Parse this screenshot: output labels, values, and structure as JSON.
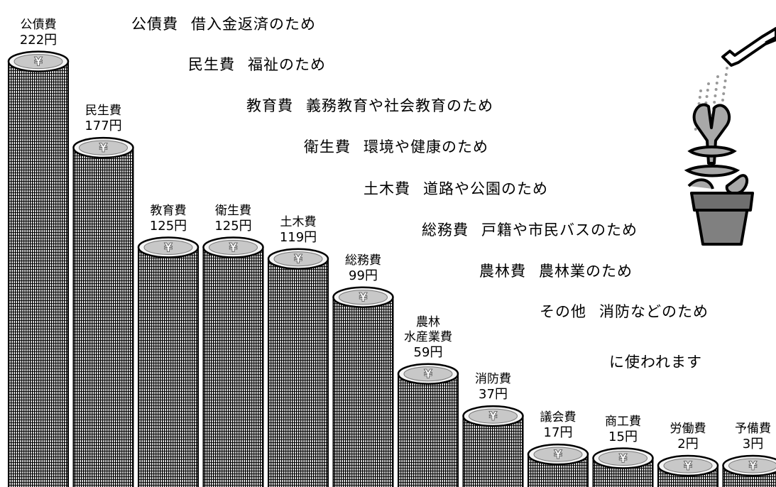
{
  "chart_data": {
    "type": "bar",
    "unit": "円",
    "categories": [
      {
        "name": "公債費",
        "value": 222,
        "value_label": "222円"
      },
      {
        "name": "民生費",
        "value": 177,
        "value_label": "177円"
      },
      {
        "name": "教育費",
        "value": 125,
        "value_label": "125円"
      },
      {
        "name": "衛生費",
        "value": 125,
        "value_label": "125円"
      },
      {
        "name": "土木費",
        "value": 119,
        "value_label": "119円"
      },
      {
        "name": "総務費",
        "value": 99,
        "value_label": "99円"
      },
      {
        "name": "農林\n水産業費",
        "value": 59,
        "value_label": "59円"
      },
      {
        "name": "消防費",
        "value": 37,
        "value_label": "37円"
      },
      {
        "name": "議会費",
        "value": 17,
        "value_label": "17円"
      },
      {
        "name": "商工費",
        "value": 15,
        "value_label": "15円"
      },
      {
        "name": "労働費",
        "value": 2,
        "value_label": "2円"
      },
      {
        "name": "予備費",
        "value": 3,
        "value_label": "3円"
      }
    ],
    "coin_symbol": "¥"
  },
  "descriptions": [
    {
      "item": "公債費",
      "purpose": "借入金返済のため"
    },
    {
      "item": "民生費",
      "purpose": "福祉のため"
    },
    {
      "item": "教育費",
      "purpose": "義務教育や社会教育のため"
    },
    {
      "item": "衛生費",
      "purpose": "環境や健康のため"
    },
    {
      "item": "土木費",
      "purpose": "道路や公園のため"
    },
    {
      "item": "総務費",
      "purpose": "戸籍や市民バスのため"
    },
    {
      "item": "農林費",
      "purpose": "農林業のため"
    },
    {
      "item": "その他",
      "purpose": "消防などのため"
    }
  ],
  "closing": "に使われます",
  "illustration": "watering-can-yen-plant-icon",
  "colors": {
    "coin_fill": "#f4f4f4",
    "coin_stroke": "#000000",
    "plant": "#a8a8a8",
    "pot": "#808080"
  }
}
